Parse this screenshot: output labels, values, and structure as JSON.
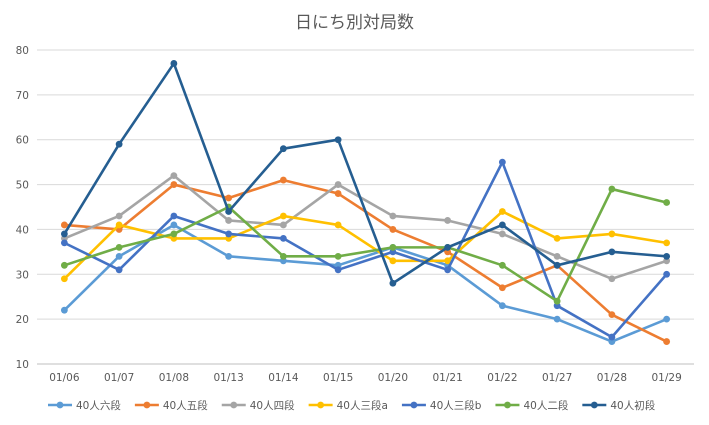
{
  "chart_data": {
    "type": "line",
    "title": "日にち別対局数",
    "xlabel": "",
    "ylabel": "",
    "ylim": [
      10,
      80
    ],
    "yticks": [
      10,
      20,
      30,
      40,
      50,
      60,
      70,
      80
    ],
    "grid": true,
    "legend_position": "bottom",
    "categories": [
      "01/06",
      "01/07",
      "01/08",
      "01/13",
      "01/14",
      "01/15",
      "01/20",
      "01/21",
      "01/22",
      "01/27",
      "01/28",
      "01/29"
    ],
    "series": [
      {
        "name": "40人六段",
        "color": "#5b9bd5",
        "values": [
          22,
          34,
          41,
          34,
          33,
          32,
          36,
          32,
          23,
          20,
          15,
          20
        ]
      },
      {
        "name": "40人五段",
        "color": "#ed7d31",
        "values": [
          41,
          40,
          50,
          47,
          51,
          48,
          40,
          35,
          27,
          32,
          21,
          15
        ]
      },
      {
        "name": "40人四段",
        "color": "#a5a5a5",
        "values": [
          38,
          43,
          52,
          42,
          41,
          50,
          43,
          42,
          39,
          34,
          29,
          33
        ]
      },
      {
        "name": "40人三段a",
        "color": "#ffc000",
        "values": [
          29,
          41,
          38,
          38,
          43,
          41,
          33,
          33,
          44,
          38,
          39,
          37
        ]
      },
      {
        "name": "40人三段b",
        "color": "#4472c4",
        "values": [
          37,
          31,
          43,
          39,
          38,
          31,
          35,
          31,
          55,
          23,
          16,
          30
        ]
      },
      {
        "name": "40人二段",
        "color": "#70ad47",
        "values": [
          32,
          36,
          39,
          45,
          34,
          34,
          36,
          36,
          32,
          24,
          49,
          46
        ]
      },
      {
        "name": "40人初段",
        "color": "#255e91",
        "values": [
          39,
          59,
          77,
          44,
          58,
          60,
          28,
          36,
          41,
          32,
          35,
          34
        ]
      }
    ]
  }
}
